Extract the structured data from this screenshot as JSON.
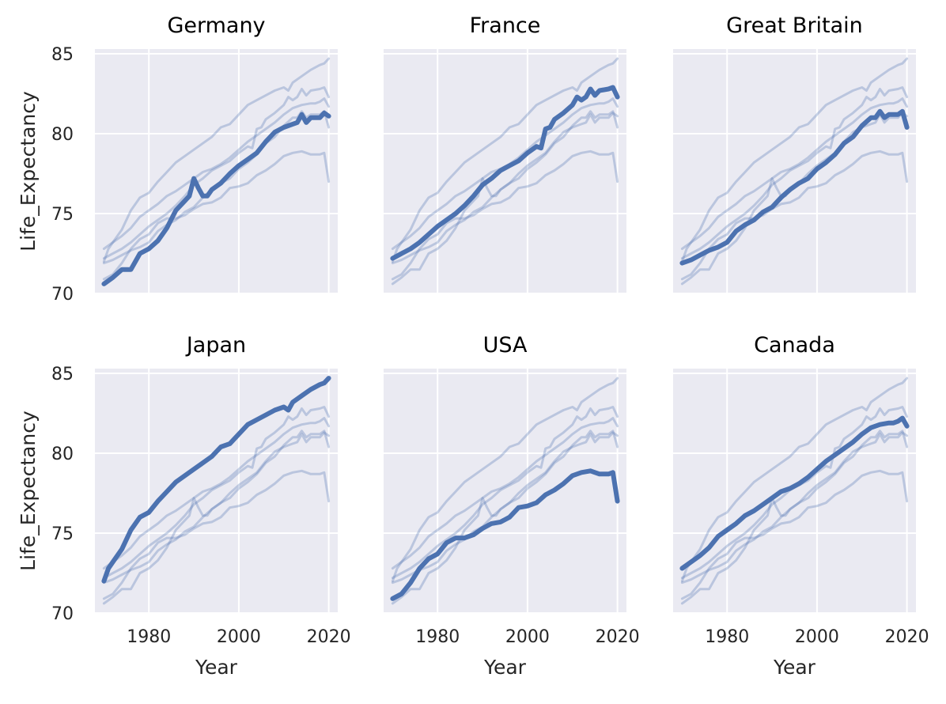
{
  "chart_data": {
    "type": "line",
    "layout": "facet-grid 2x3",
    "xlabel": "Year",
    "ylabel": "Life_Expectancy",
    "xlim": [
      1968,
      2022
    ],
    "ylim": [
      70,
      85.3
    ],
    "x_ticks": [
      1980,
      2000,
      2020
    ],
    "y_ticks": [
      70,
      75,
      80,
      85
    ],
    "grid": true,
    "style": {
      "panel_background": "#eaeaf2",
      "grid_color": "#ffffff",
      "line_color": "#4c72b0",
      "background_line_opacity": 0.3
    },
    "series": [
      {
        "name": "Germany",
        "x": [
          1970,
          1972,
          1974,
          1976,
          1978,
          1980,
          1982,
          1984,
          1986,
          1988,
          1989,
          1990,
          1991,
          1992,
          1993,
          1994,
          1996,
          1998,
          2000,
          2002,
          2004,
          2006,
          2008,
          2010,
          2012,
          2013,
          2014,
          2015,
          2016,
          2018,
          2019,
          2020
        ],
        "values": [
          70.6,
          71.0,
          71.5,
          71.5,
          72.5,
          72.8,
          73.3,
          74.1,
          75.2,
          75.8,
          76.1,
          77.2,
          76.6,
          76.1,
          76.1,
          76.5,
          76.9,
          77.5,
          78.0,
          78.4,
          78.8,
          79.5,
          80.1,
          80.4,
          80.6,
          80.7,
          81.2,
          80.7,
          81.0,
          81.0,
          81.3,
          81.1
        ]
      },
      {
        "name": "France",
        "x": [
          1970,
          1972,
          1974,
          1976,
          1978,
          1980,
          1982,
          1984,
          1986,
          1988,
          1990,
          1992,
          1994,
          1996,
          1998,
          2000,
          2002,
          2003,
          2004,
          2005,
          2006,
          2008,
          2010,
          2011,
          2012,
          2013,
          2014,
          2015,
          2016,
          2018,
          2019,
          2020
        ],
        "values": [
          72.2,
          72.5,
          72.8,
          73.2,
          73.7,
          74.2,
          74.6,
          75.0,
          75.5,
          76.1,
          76.8,
          77.2,
          77.7,
          78.0,
          78.3,
          78.8,
          79.2,
          79.1,
          80.3,
          80.4,
          80.9,
          81.3,
          81.8,
          82.3,
          82.1,
          82.3,
          82.8,
          82.4,
          82.7,
          82.8,
          82.9,
          82.3
        ]
      },
      {
        "name": "Great Britain",
        "x": [
          1970,
          1972,
          1974,
          1976,
          1978,
          1980,
          1982,
          1984,
          1986,
          1988,
          1990,
          1992,
          1994,
          1996,
          1998,
          2000,
          2002,
          2004,
          2006,
          2008,
          2010,
          2012,
          2013,
          2014,
          2015,
          2016,
          2018,
          2019,
          2020
        ],
        "values": [
          71.9,
          72.1,
          72.4,
          72.7,
          72.9,
          73.2,
          73.9,
          74.3,
          74.6,
          75.1,
          75.4,
          76.0,
          76.5,
          76.9,
          77.2,
          77.8,
          78.2,
          78.7,
          79.4,
          79.8,
          80.5,
          81.0,
          81.0,
          81.4,
          81.0,
          81.2,
          81.2,
          81.4,
          80.4
        ]
      },
      {
        "name": "Japan",
        "x": [
          1970,
          1971,
          1972,
          1974,
          1976,
          1978,
          1980,
          1982,
          1984,
          1986,
          1988,
          1990,
          1992,
          1994,
          1996,
          1998,
          2000,
          2002,
          2004,
          2006,
          2008,
          2010,
          2011,
          2012,
          2014,
          2016,
          2018,
          2019,
          2020
        ],
        "values": [
          72.0,
          72.8,
          73.2,
          74.0,
          75.2,
          76.0,
          76.3,
          77.0,
          77.6,
          78.2,
          78.6,
          79.0,
          79.4,
          79.8,
          80.4,
          80.6,
          81.2,
          81.8,
          82.1,
          82.4,
          82.7,
          82.9,
          82.7,
          83.2,
          83.6,
          84.0,
          84.3,
          84.4,
          84.7
        ]
      },
      {
        "name": "USA",
        "x": [
          1970,
          1972,
          1974,
          1976,
          1978,
          1980,
          1982,
          1984,
          1986,
          1988,
          1990,
          1992,
          1994,
          1996,
          1998,
          2000,
          2002,
          2004,
          2006,
          2008,
          2010,
          2012,
          2014,
          2016,
          2018,
          2019,
          2020
        ],
        "values": [
          70.9,
          71.2,
          71.9,
          72.8,
          73.4,
          73.7,
          74.4,
          74.7,
          74.7,
          74.9,
          75.3,
          75.6,
          75.7,
          76.0,
          76.6,
          76.7,
          76.9,
          77.4,
          77.7,
          78.1,
          78.6,
          78.8,
          78.9,
          78.7,
          78.7,
          78.8,
          77.0
        ]
      },
      {
        "name": "Canada",
        "x": [
          1970,
          1972,
          1974,
          1976,
          1978,
          1980,
          1982,
          1984,
          1986,
          1988,
          1990,
          1992,
          1994,
          1996,
          1998,
          2000,
          2002,
          2004,
          2006,
          2008,
          2010,
          2012,
          2014,
          2016,
          2017,
          2018,
          2019,
          2020
        ],
        "values": [
          72.8,
          73.2,
          73.6,
          74.1,
          74.8,
          75.2,
          75.6,
          76.1,
          76.4,
          76.8,
          77.2,
          77.6,
          77.8,
          78.1,
          78.5,
          79.0,
          79.5,
          79.9,
          80.3,
          80.7,
          81.2,
          81.6,
          81.8,
          81.9,
          81.9,
          82.0,
          82.2,
          81.7
        ]
      }
    ]
  }
}
